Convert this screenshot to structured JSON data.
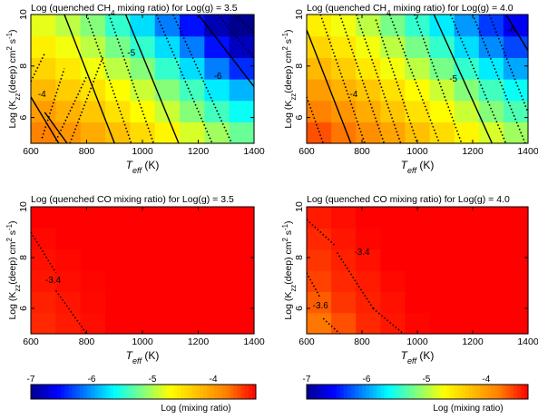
{
  "chart_data": [
    {
      "type": "heatmap",
      "title_parts": [
        "Log (quenched CH",
        "4",
        " mixing ratio) for Log(g) = 3.5"
      ],
      "x_label": [
        "T",
        "eff",
        " (K)"
      ],
      "y_label": [
        "Log (K",
        "zz",
        "(deep) cm",
        "2",
        " s",
        "-1",
        ")"
      ],
      "x_range": [
        600,
        1400
      ],
      "y_range": [
        5,
        10
      ],
      "x_ticks": [
        "600",
        "800",
        "1000",
        "1200",
        "1400"
      ],
      "y_ticks": [
        "6",
        "8",
        "10"
      ],
      "grid": {
        "x": [
          600,
          700,
          800,
          900,
          1000,
          1100,
          1200,
          1300,
          1400
        ],
        "y": [
          5,
          6,
          7,
          8,
          9,
          10
        ],
        "values": [
          [
            -3.8,
            -3.95,
            -4.1,
            -4.25,
            -4.45,
            -4.65,
            -4.85,
            -5.05,
            -5.25
          ],
          [
            -4.0,
            -4.15,
            -4.3,
            -4.5,
            -4.7,
            -4.9,
            -5.15,
            -5.4,
            -5.6
          ],
          [
            -4.2,
            -4.35,
            -4.5,
            -4.7,
            -4.9,
            -5.15,
            -5.4,
            -5.7,
            -5.9
          ],
          [
            -4.4,
            -4.55,
            -4.75,
            -4.95,
            -5.15,
            -5.45,
            -5.75,
            -6.1,
            -6.4
          ],
          [
            -4.6,
            -4.75,
            -4.95,
            -5.2,
            -5.45,
            -5.75,
            -6.1,
            -6.5,
            -6.8
          ],
          [
            -4.8,
            -4.95,
            -5.15,
            -5.45,
            -5.75,
            -6.1,
            -6.5,
            -6.85,
            -7.0
          ]
        ]
      },
      "contour_labels": [
        "-4",
        "-5",
        "-6"
      ]
    },
    {
      "type": "heatmap",
      "title_parts": [
        "Log (quenched CH",
        "4",
        " mixing ratio) for Log(g) = 4.0"
      ],
      "x_label": [
        "T",
        "eff",
        " (K)"
      ],
      "y_label": [
        "Log (K",
        "zz",
        "(deep) cm",
        "2",
        " s",
        "-1",
        ")"
      ],
      "x_range": [
        600,
        1400
      ],
      "y_range": [
        5,
        10
      ],
      "x_ticks": [
        "600",
        "800",
        "1000",
        "1200",
        "1400"
      ],
      "y_ticks": [
        "6",
        "8",
        "10"
      ],
      "grid": {
        "x": [
          600,
          700,
          800,
          900,
          1000,
          1100,
          1200,
          1300,
          1400
        ],
        "y": [
          5,
          6,
          7,
          8,
          9,
          10
        ],
        "values": [
          [
            -3.6,
            -3.75,
            -3.9,
            -4.05,
            -4.25,
            -4.45,
            -4.65,
            -4.85,
            -5.05
          ],
          [
            -3.8,
            -3.95,
            -4.1,
            -4.3,
            -4.5,
            -4.7,
            -4.9,
            -5.15,
            -5.35
          ],
          [
            -4.0,
            -4.15,
            -4.3,
            -4.5,
            -4.7,
            -4.9,
            -5.15,
            -5.4,
            -5.6
          ],
          [
            -4.2,
            -4.35,
            -4.55,
            -4.75,
            -4.95,
            -5.2,
            -5.45,
            -5.7,
            -5.95
          ],
          [
            -4.4,
            -4.55,
            -4.75,
            -4.95,
            -5.2,
            -5.45,
            -5.75,
            -6.05,
            -6.3
          ],
          [
            -4.6,
            -4.75,
            -4.95,
            -5.2,
            -5.45,
            -5.7,
            -6.0,
            -6.35,
            -6.6
          ]
        ]
      },
      "contour_labels": [
        "-4",
        "-5",
        "-6"
      ]
    },
    {
      "type": "heatmap",
      "title_parts": [
        "Log (quenched CO mixing ratio) for Log(g) = 3.5"
      ],
      "x_label": [
        "T",
        "eff",
        " (K)"
      ],
      "y_label": [
        "Log (K",
        "zz",
        "(deep) cm",
        "2",
        " s",
        "-1",
        ")"
      ],
      "x_range": [
        600,
        1400
      ],
      "y_range": [
        5,
        10
      ],
      "x_ticks": [
        "600",
        "800",
        "1000",
        "1200",
        "1400"
      ],
      "y_ticks": [
        "6",
        "8",
        "10"
      ],
      "grid": {
        "x": [
          600,
          700,
          800,
          900,
          1000,
          1100,
          1200,
          1300,
          1400
        ],
        "y": [
          5,
          6,
          7,
          8,
          9,
          10
        ],
        "values": [
          [
            -3.45,
            -3.4,
            -3.35,
            -3.3,
            -3.3,
            -3.3,
            -3.3,
            -3.3,
            -3.3
          ],
          [
            -3.42,
            -3.38,
            -3.33,
            -3.3,
            -3.3,
            -3.3,
            -3.3,
            -3.3,
            -3.3
          ],
          [
            -3.38,
            -3.35,
            -3.32,
            -3.3,
            -3.3,
            -3.3,
            -3.3,
            -3.28,
            -3.3
          ],
          [
            -3.36,
            -3.33,
            -3.3,
            -3.3,
            -3.3,
            -3.3,
            -3.3,
            -3.3,
            -3.3
          ],
          [
            -3.33,
            -3.3,
            -3.3,
            -3.3,
            -3.3,
            -3.3,
            -3.3,
            -3.3,
            -3.3
          ],
          [
            -3.3,
            -3.3,
            -3.3,
            -3.3,
            -3.3,
            -3.3,
            -3.3,
            -3.3,
            -3.3
          ]
        ]
      },
      "contour_labels": [
        "-3.4"
      ]
    },
    {
      "type": "heatmap",
      "title_parts": [
        "Log (quenched CO mixing ratio) for Log(g) = 4.0"
      ],
      "x_label": [
        "T",
        "eff",
        " (K)"
      ],
      "y_label": [
        "Log (K",
        "zz",
        "(deep) cm",
        "2",
        " s",
        "-1",
        ")"
      ],
      "x_range": [
        600,
        1400
      ],
      "y_range": [
        5,
        10
      ],
      "x_ticks": [
        "600",
        "800",
        "1000",
        "1200",
        "1400"
      ],
      "y_ticks": [
        "6",
        "8",
        "10"
      ],
      "grid": {
        "x": [
          600,
          700,
          800,
          900,
          1000,
          1100,
          1200,
          1300,
          1400
        ],
        "y": [
          5,
          6,
          7,
          8,
          9,
          10
        ],
        "values": [
          [
            -3.75,
            -3.6,
            -3.45,
            -3.38,
            -3.32,
            -3.3,
            -3.3,
            -3.3,
            -3.3
          ],
          [
            -3.65,
            -3.5,
            -3.42,
            -3.36,
            -3.3,
            -3.3,
            -3.3,
            -3.3,
            -3.3
          ],
          [
            -3.55,
            -3.45,
            -3.4,
            -3.33,
            -3.3,
            -3.3,
            -3.3,
            -3.3,
            -3.3
          ],
          [
            -3.5,
            -3.42,
            -3.36,
            -3.3,
            -3.3,
            -3.3,
            -3.3,
            -3.3,
            -3.3
          ],
          [
            -3.45,
            -3.38,
            -3.32,
            -3.3,
            -3.3,
            -3.3,
            -3.3,
            -3.3,
            -3.3
          ],
          [
            -3.4,
            -3.35,
            -3.3,
            -3.3,
            -3.3,
            -3.3,
            -3.3,
            -3.3,
            -3.3
          ]
        ]
      },
      "contour_labels": [
        "-3.4",
        "-3.6"
      ]
    }
  ],
  "colorbars": [
    {
      "ticks": [
        "-7",
        "-6",
        "-5",
        "-4"
      ],
      "label": "Log (mixing ratio)",
      "range": [
        -7,
        -3.3
      ]
    },
    {
      "ticks": [
        "-7",
        "-6",
        "-5",
        "-4"
      ],
      "label": "Log (mixing ratio)",
      "range": [
        -7,
        -3.3
      ]
    }
  ],
  "colormap": [
    "#00008f",
    "#0000ff",
    "#00ffff",
    "#ffff00",
    "#ff7f00",
    "#ff0000"
  ]
}
